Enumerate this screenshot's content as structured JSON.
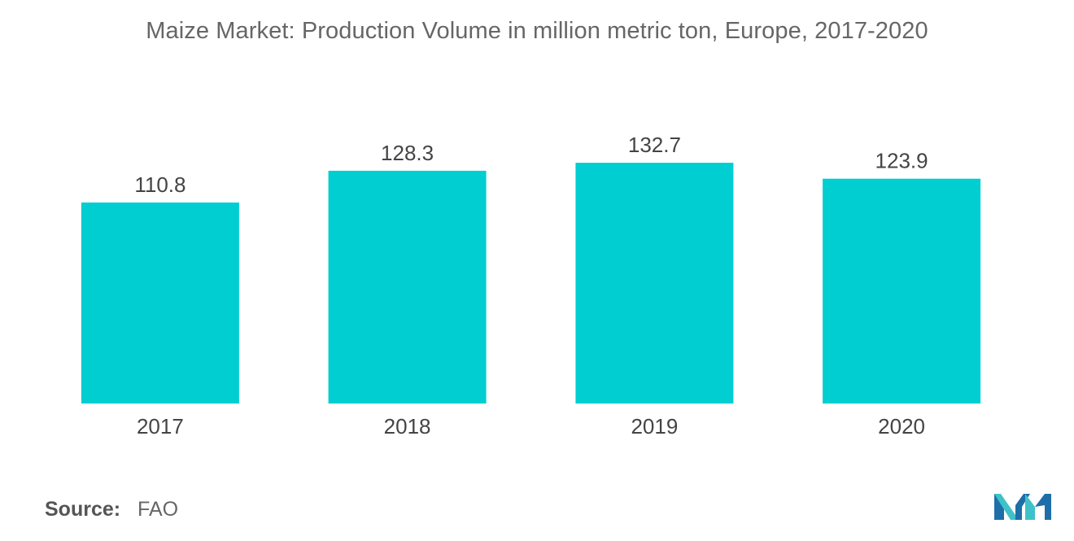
{
  "chart_data": {
    "type": "bar",
    "title": "Maize Market: Production Volume in million metric ton, Europe, 2017-2020",
    "categories": [
      "2017",
      "2018",
      "2019",
      "2020"
    ],
    "values": [
      110.8,
      128.3,
      132.7,
      123.9
    ],
    "xlabel": "",
    "ylabel": "",
    "ylim": [
      0,
      135
    ],
    "grid": false,
    "bar_color": "#00CED1"
  },
  "source": {
    "label": "Source:",
    "value": "FAO"
  },
  "logo": {
    "icon": "mordor-intelligence-logo-icon",
    "colors": [
      "#1E6FA8",
      "#3FC1C9"
    ]
  }
}
